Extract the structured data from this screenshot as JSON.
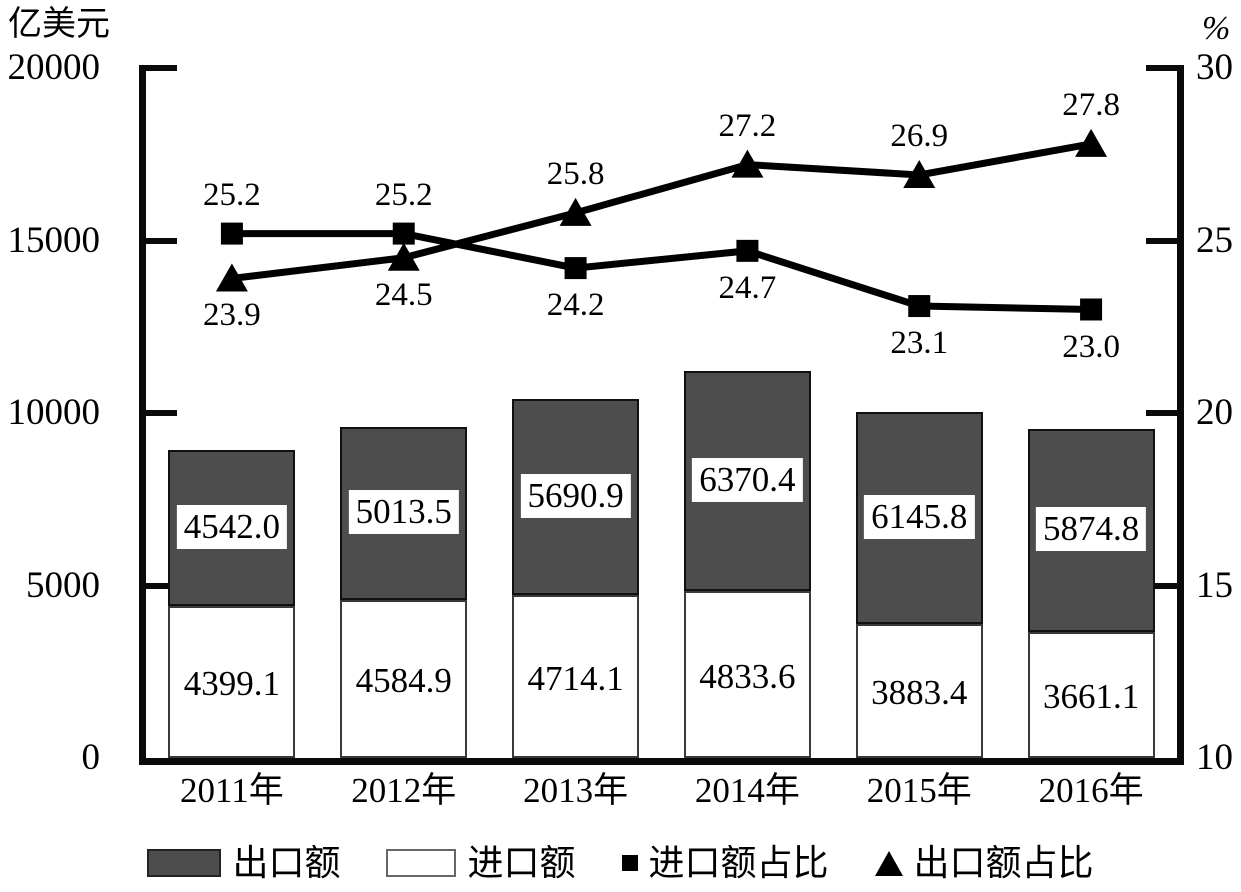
{
  "chart_data": {
    "type": "combo-stacked-bar-line",
    "title": "",
    "left_axis": {
      "title": "亿美元",
      "min": 0,
      "max": 20000,
      "ticks": [
        "20000",
        "15000",
        "10000",
        "5000",
        "0"
      ]
    },
    "right_axis": {
      "title": "%",
      "min": 10,
      "max": 30,
      "ticks": [
        "30",
        "25",
        "20",
        "15",
        "10"
      ]
    },
    "categories": [
      "2011年",
      "2012年",
      "2013年",
      "2014年",
      "2015年",
      "2016年"
    ],
    "bar_series": [
      {
        "name": "进口额",
        "stack": "bottom",
        "fill": "#ffffff",
        "label_style": "plain",
        "values": [
          4399.1,
          4584.9,
          4714.1,
          4833.6,
          3883.4,
          3661.1
        ]
      },
      {
        "name": "出口额",
        "stack": "top",
        "fill": "#4d4d4d",
        "label_style": "boxed",
        "values": [
          4542.0,
          5013.5,
          5690.9,
          6370.4,
          6145.8,
          5874.8
        ]
      }
    ],
    "line_series": [
      {
        "name": "进口额占比",
        "marker": "square",
        "color": "#000000",
        "values": [
          25.2,
          25.2,
          24.2,
          24.7,
          23.1,
          23.0
        ]
      },
      {
        "name": "出口额占比",
        "marker": "triangle",
        "color": "#000000",
        "values": [
          23.9,
          24.5,
          25.8,
          27.2,
          26.9,
          27.8
        ]
      }
    ],
    "legend": [
      {
        "label": "出口额",
        "swatch": "bar-dark"
      },
      {
        "label": "进口额",
        "swatch": "bar-white"
      },
      {
        "label": "进口额占比",
        "swatch": "square"
      },
      {
        "label": "出口额占比",
        "swatch": "triangle"
      }
    ],
    "layout": {
      "grid": false,
      "legend_position": "bottom"
    },
    "colors": {
      "bar_dark": "#4d4d4d",
      "bar_white": "#ffffff",
      "line": "#000000",
      "axis": "#0a0a0a"
    }
  }
}
